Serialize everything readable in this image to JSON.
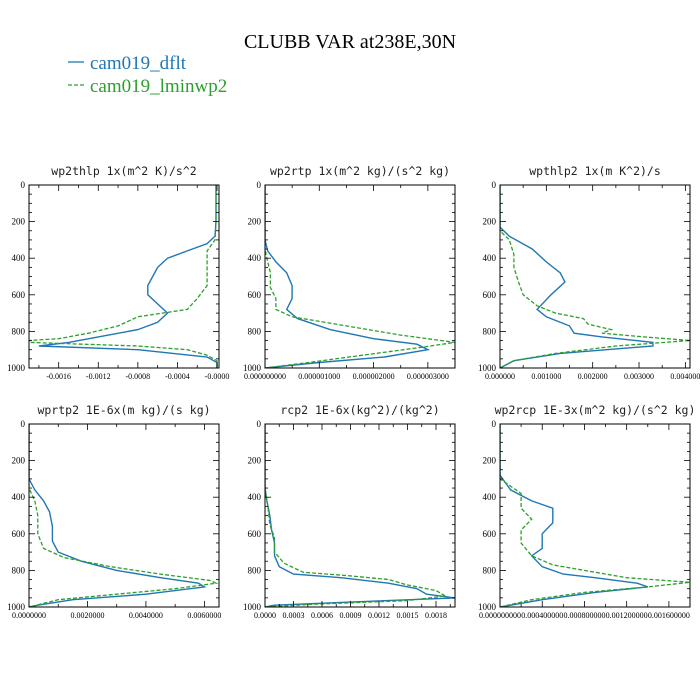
{
  "figure": {
    "title": "CLUBB VAR at238E,30N",
    "legend": [
      {
        "label": "cam019_dflt",
        "color": "#1f77b4"
      },
      {
        "label": "cam019_lminwp2",
        "color": "#2ca02c"
      }
    ]
  },
  "chart_data": [
    {
      "type": "line",
      "title": "wp2thlp   1x(m^2 K)/s^2",
      "ylim": [
        1000,
        0
      ],
      "yticks": [
        0,
        200,
        400,
        600,
        800,
        1000
      ],
      "xlim": [
        -0.0019,
        2e-05
      ],
      "xticks": [
        -0.0016,
        -0.0012,
        -0.0008,
        -0.0004,
        -0.0
      ],
      "xticklabels": [
        "-0.0016",
        "-0.0012",
        "-0.0008",
        "-0.0004",
        "-0.0000"
      ],
      "series": [
        {
          "name": "cam019_dflt",
          "points": [
            [
              -1e-05,
              0
            ],
            [
              -1e-05,
              200
            ],
            [
              -2e-05,
              280
            ],
            [
              -0.0001,
              320
            ],
            [
              -0.0003,
              360
            ],
            [
              -0.0005,
              400
            ],
            [
              -0.0006,
              450
            ],
            [
              -0.00065,
              500
            ],
            [
              -0.0007,
              550
            ],
            [
              -0.0007,
              600
            ],
            [
              -0.0006,
              650
            ],
            [
              -0.0005,
              700
            ],
            [
              -0.0006,
              750
            ],
            [
              -0.0008,
              790
            ],
            [
              -0.0012,
              830
            ],
            [
              -0.0015,
              860
            ],
            [
              -0.0018,
              880
            ],
            [
              -0.0008,
              900
            ],
            [
              -0.0001,
              940
            ],
            [
              0.0,
              970
            ],
            [
              0.0,
              1000
            ]
          ]
        },
        {
          "name": "cam019_lminwp2",
          "points": [
            [
              -1e-05,
              0
            ],
            [
              -1e-05,
              200
            ],
            [
              -2e-05,
              300
            ],
            [
              -0.0001,
              360
            ],
            [
              -0.0001,
              450
            ],
            [
              -0.0001,
              550
            ],
            [
              -0.0002,
              620
            ],
            [
              -0.0003,
              680
            ],
            [
              -0.0008,
              720
            ],
            [
              -0.001,
              770
            ],
            [
              -0.0013,
              810
            ],
            [
              -0.0016,
              840
            ],
            [
              -0.0019,
              850
            ],
            [
              -0.0019,
              860
            ],
            [
              -0.0008,
              880
            ],
            [
              -0.0003,
              900
            ],
            [
              -0.0001,
              930
            ],
            [
              0.0,
              960
            ],
            [
              0.0,
              1000
            ]
          ]
        }
      ]
    },
    {
      "type": "line",
      "title": "wp2rtp   1x(m^2 kg)/(s^2 kg)",
      "ylim": [
        1000,
        0
      ],
      "yticks": [
        0,
        200,
        400,
        600,
        800,
        1000
      ],
      "xlim": [
        0,
        3.5e-06
      ],
      "xticks": [
        0,
        1e-06,
        2e-06,
        3e-06
      ],
      "xticklabels": [
        "0.000000000",
        "0.000001000",
        "0.000002000",
        "0.000003000"
      ],
      "series": [
        {
          "name": "cam019_dflt",
          "points": [
            [
              0.0,
              0
            ],
            [
              0.0,
              300
            ],
            [
              5e-08,
              360
            ],
            [
              2e-07,
              420
            ],
            [
              4e-07,
              480
            ],
            [
              5e-07,
              550
            ],
            [
              5e-07,
              620
            ],
            [
              4e-07,
              680
            ],
            [
              6e-07,
              730
            ],
            [
              1.2e-06,
              790
            ],
            [
              2e-06,
              840
            ],
            [
              2.8e-06,
              870
            ],
            [
              3e-06,
              900
            ],
            [
              2.2e-06,
              940
            ],
            [
              1e-06,
              970
            ],
            [
              0.0,
              1000
            ]
          ]
        },
        {
          "name": "cam019_lminwp2",
          "points": [
            [
              0.0,
              0
            ],
            [
              0.0,
              350
            ],
            [
              5e-08,
              420
            ],
            [
              1e-07,
              480
            ],
            [
              1e-07,
              560
            ],
            [
              2e-07,
              620
            ],
            [
              2e-07,
              680
            ],
            [
              5e-07,
              720
            ],
            [
              1.5e-06,
              770
            ],
            [
              2.5e-06,
              820
            ],
            [
              3.5e-06,
              860
            ],
            [
              2.8e-06,
              890
            ],
            [
              1.8e-06,
              930
            ],
            [
              8e-07,
              970
            ],
            [
              0.0,
              1000
            ]
          ]
        }
      ]
    },
    {
      "type": "line",
      "title": "wpthlp2   1x(m K^2)/s",
      "ylim": [
        1000,
        0
      ],
      "yticks": [
        0,
        200,
        400,
        600,
        800,
        1000
      ],
      "xlim": [
        0,
        0.0041
      ],
      "xticks": [
        0,
        0.001,
        0.002,
        0.003,
        0.004
      ],
      "xticklabels": [
        "0.000000",
        "0.001000",
        "0.002000",
        "0.003000",
        "0.004000"
      ],
      "series": [
        {
          "name": "cam019_dflt",
          "points": [
            [
              0.0,
              0
            ],
            [
              0.0,
              230
            ],
            [
              0.0002,
              280
            ],
            [
              0.0007,
              350
            ],
            [
              0.001,
              420
            ],
            [
              0.0013,
              480
            ],
            [
              0.0014,
              530
            ],
            [
              0.0011,
              600
            ],
            [
              0.0008,
              680
            ],
            [
              0.001,
              720
            ],
            [
              0.0015,
              770
            ],
            [
              0.0016,
              810
            ],
            [
              0.0022,
              830
            ],
            [
              0.0033,
              860
            ],
            [
              0.0033,
              880
            ],
            [
              0.0013,
              920
            ],
            [
              0.0003,
              960
            ],
            [
              0.0,
              1000
            ]
          ]
        },
        {
          "name": "cam019_lminwp2",
          "points": [
            [
              0.0,
              0
            ],
            [
              0.0,
              250
            ],
            [
              0.0002,
              300
            ],
            [
              0.0003,
              380
            ],
            [
              0.0003,
              450
            ],
            [
              0.0004,
              530
            ],
            [
              0.0005,
              600
            ],
            [
              0.0008,
              660
            ],
            [
              0.0012,
              700
            ],
            [
              0.0018,
              730
            ],
            [
              0.0019,
              760
            ],
            [
              0.0024,
              790
            ],
            [
              0.0022,
              810
            ],
            [
              0.0031,
              830
            ],
            [
              0.0041,
              850
            ],
            [
              0.0025,
              880
            ],
            [
              0.0012,
              920
            ],
            [
              0.0003,
              960
            ],
            [
              0.0,
              1000
            ]
          ]
        }
      ]
    },
    {
      "type": "line",
      "title": "wprtp2   1E-6x(m kg)/(s kg)",
      "ylim": [
        1000,
        0
      ],
      "yticks": [
        0,
        200,
        400,
        600,
        800,
        1000
      ],
      "xlim": [
        0,
        0.0065
      ],
      "xticks": [
        0,
        0.002,
        0.004,
        0.006
      ],
      "xticklabels": [
        "0.0000000",
        "0.0020000",
        "0.0040000",
        "0.0060000"
      ],
      "series": [
        {
          "name": "cam019_dflt",
          "points": [
            [
              0.0,
              0
            ],
            [
              0.0,
              300
            ],
            [
              0.0002,
              360
            ],
            [
              0.0005,
              420
            ],
            [
              0.0007,
              480
            ],
            [
              0.0008,
              560
            ],
            [
              0.0008,
              640
            ],
            [
              0.001,
              700
            ],
            [
              0.0018,
              750
            ],
            [
              0.003,
              800
            ],
            [
              0.0045,
              840
            ],
            [
              0.0058,
              870
            ],
            [
              0.006,
              890
            ],
            [
              0.004,
              930
            ],
            [
              0.0015,
              960
            ],
            [
              0.0003,
              990
            ],
            [
              0.0,
              1000
            ]
          ]
        },
        {
          "name": "cam019_lminwp2",
          "points": [
            [
              0.0,
              0
            ],
            [
              0.0,
              350
            ],
            [
              0.0002,
              420
            ],
            [
              0.0003,
              500
            ],
            [
              0.0003,
              600
            ],
            [
              0.0005,
              680
            ],
            [
              0.0012,
              730
            ],
            [
              0.0028,
              780
            ],
            [
              0.0045,
              820
            ],
            [
              0.0062,
              855
            ],
            [
              0.0064,
              870
            ],
            [
              0.005,
              900
            ],
            [
              0.003,
              930
            ],
            [
              0.001,
              960
            ],
            [
              0.0,
              1000
            ]
          ]
        }
      ]
    },
    {
      "type": "line",
      "title": "rcp2   1E-6x(kg^2)/(kg^2)",
      "ylim": [
        1000,
        0
      ],
      "yticks": [
        0,
        200,
        400,
        600,
        800,
        1000
      ],
      "xlim": [
        0,
        0.002
      ],
      "xticks": [
        0,
        0.0003,
        0.0006,
        0.0009,
        0.0012,
        0.0015,
        0.0018
      ],
      "xticklabels": [
        "0.0000",
        "0.0003",
        "0.0006",
        "0.0009",
        "0.0012",
        "0.0015",
        "0.0018"
      ],
      "series": [
        {
          "name": "cam019_dflt",
          "points": [
            [
              0.0,
              0
            ],
            [
              0.0,
              350
            ],
            [
              2e-05,
              420
            ],
            [
              5e-05,
              500
            ],
            [
              7e-05,
              580
            ],
            [
              0.0001,
              650
            ],
            [
              0.0001,
              720
            ],
            [
              0.00015,
              780
            ],
            [
              0.0003,
              820
            ],
            [
              0.0008,
              840
            ],
            [
              0.0013,
              870
            ],
            [
              0.0016,
              900
            ],
            [
              0.0017,
              930
            ],
            [
              0.002,
              950
            ],
            [
              0.0008,
              975
            ],
            [
              0.0001,
              990
            ],
            [
              0.0,
              1000
            ]
          ]
        },
        {
          "name": "cam019_lminwp2",
          "points": [
            [
              0.0,
              0
            ],
            [
              0.0,
              350
            ],
            [
              3e-05,
              450
            ],
            [
              5e-05,
              550
            ],
            [
              0.0001,
              620
            ],
            [
              0.0001,
              700
            ],
            [
              0.0002,
              760
            ],
            [
              0.0004,
              810
            ],
            [
              0.0009,
              830
            ],
            [
              0.0013,
              850
            ],
            [
              0.0015,
              880
            ],
            [
              0.0018,
              910
            ],
            [
              0.0019,
              940
            ],
            [
              0.0015,
              965
            ],
            [
              0.0005,
              985
            ],
            [
              0.0,
              1000
            ]
          ]
        }
      ]
    },
    {
      "type": "line",
      "title": "wp2rcp   1E-3x(m^2 kg)/(s^2 kg)",
      "ylim": [
        1000,
        0
      ],
      "yticks": [
        0,
        200,
        400,
        600,
        800,
        1000
      ],
      "xlim": [
        0,
        0.0018
      ],
      "xticks": [
        0,
        0.0004,
        0.0008,
        0.0012,
        0.0016
      ],
      "xticklabels": [
        "0.000000000",
        "0.000400000",
        "0.000800000",
        "0.001200000",
        "0.001600000"
      ],
      "series": [
        {
          "name": "cam019_dflt",
          "points": [
            [
              0.0,
              0
            ],
            [
              0.0,
              280
            ],
            [
              0.0001,
              360
            ],
            [
              0.0003,
              420
            ],
            [
              0.0005,
              460
            ],
            [
              0.0005,
              540
            ],
            [
              0.0004,
              600
            ],
            [
              0.0004,
              680
            ],
            [
              0.0003,
              720
            ],
            [
              0.0004,
              780
            ],
            [
              0.0006,
              820
            ],
            [
              0.0009,
              840
            ],
            [
              0.0013,
              870
            ],
            [
              0.0014,
              890
            ],
            [
              0.0009,
              920
            ],
            [
              0.0004,
              960
            ],
            [
              0.0,
              1000
            ]
          ]
        },
        {
          "name": "cam019_lminwp2",
          "points": [
            [
              0.0,
              0
            ],
            [
              0.0,
              300
            ],
            [
              0.0002,
              380
            ],
            [
              0.0002,
              460
            ],
            [
              0.0003,
              520
            ],
            [
              0.0002,
              580
            ],
            [
              0.0002,
              650
            ],
            [
              0.0003,
              720
            ],
            [
              0.0005,
              770
            ],
            [
              0.0008,
              800
            ],
            [
              0.0012,
              840
            ],
            [
              0.0018,
              865
            ],
            [
              0.0014,
              890
            ],
            [
              0.0008,
              920
            ],
            [
              0.0003,
              960
            ],
            [
              0.0,
              1000
            ]
          ]
        }
      ]
    }
  ]
}
